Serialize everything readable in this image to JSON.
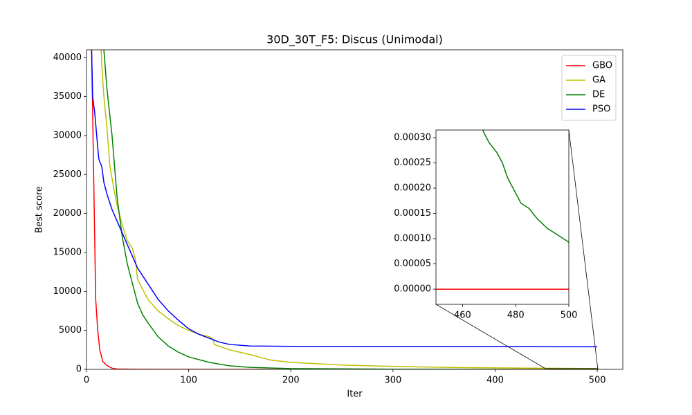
{
  "chart_data": [
    {
      "type": "line",
      "title": "30D_30T_F5: Discus (Unimodal)",
      "xlabel": "Iter",
      "ylabel": "Best score",
      "xlim": [
        0,
        525
      ],
      "ylim": [
        0,
        41000
      ],
      "xticks": [
        0,
        100,
        200,
        300,
        400,
        500
      ],
      "yticks": [
        0,
        5000,
        10000,
        15000,
        20000,
        25000,
        30000,
        35000,
        40000
      ],
      "legend": "upper right",
      "series": [
        {
          "name": "GBO",
          "color": "#ff0000",
          "x": [
            3,
            5,
            7,
            9,
            11,
            13,
            16,
            20,
            25,
            30,
            50,
            100,
            500
          ],
          "values": [
            60000,
            41000,
            25000,
            9000,
            5000,
            2500,
            1000,
            500,
            150,
            50,
            10,
            2,
            0
          ]
        },
        {
          "name": "GA",
          "color": "#bfbf00",
          "x": [
            13,
            15,
            17,
            20,
            23,
            27,
            30,
            35,
            40,
            45,
            48,
            50,
            52,
            60,
            70,
            80,
            90,
            100,
            110,
            120,
            124,
            125,
            140,
            160,
            180,
            200,
            250,
            300,
            350,
            400,
            450,
            500
          ],
          "values": [
            45000,
            39000,
            35000,
            31000,
            26000,
            23000,
            21000,
            18500,
            16500,
            15500,
            14000,
            11500,
            11000,
            9000,
            7500,
            6500,
            5600,
            5000,
            4500,
            4200,
            3900,
            3200,
            2500,
            1900,
            1200,
            900,
            550,
            380,
            260,
            190,
            140,
            100
          ]
        },
        {
          "name": "DE",
          "color": "#008000",
          "x": [
            16,
            17,
            20,
            25,
            30,
            35,
            40,
            45,
            50,
            55,
            60,
            70,
            80,
            90,
            100,
            120,
            140,
            160,
            200,
            300,
            400,
            450,
            500
          ],
          "values": [
            45000,
            41000,
            36000,
            30000,
            22000,
            17000,
            13500,
            11000,
            8500,
            7000,
            6000,
            4200,
            3000,
            2200,
            1600,
            900,
            450,
            250,
            100,
            20,
            5,
            0.0005,
            9.3e-05
          ]
        },
        {
          "name": "PSO",
          "color": "#0000ff",
          "x": [
            4,
            5,
            6,
            8,
            10,
            12,
            15,
            17,
            20,
            25,
            30,
            35,
            40,
            50,
            60,
            70,
            80,
            90,
            100,
            110,
            120,
            130,
            140,
            160,
            200,
            300,
            500
          ],
          "values": [
            50000,
            41000,
            35000,
            33000,
            30000,
            27000,
            26000,
            24000,
            22500,
            20500,
            19000,
            17500,
            16000,
            13000,
            11000,
            9000,
            7500,
            6300,
            5200,
            4500,
            4000,
            3500,
            3200,
            3000,
            2950,
            2920,
            2900
          ]
        }
      ]
    },
    {
      "type": "line",
      "xlim": [
        450,
        500
      ],
      "ylim": [
        -3e-05,
        0.000315
      ],
      "xticks": [
        460,
        480,
        500
      ],
      "yticks": [
        {
          "value": 0,
          "label": "0.00000"
        },
        {
          "value": 5e-05,
          "label": "0.00005"
        },
        {
          "value": 0.0001,
          "label": "0.00010"
        },
        {
          "value": 0.00015,
          "label": "0.00015"
        },
        {
          "value": 0.0002,
          "label": "0.00020"
        },
        {
          "value": 0.00025,
          "label": "0.00025"
        },
        {
          "value": 0.0003,
          "label": "0.00030"
        }
      ],
      "series": [
        {
          "color": "#ff0000",
          "x": [
            450,
            500
          ],
          "values": [
            0,
            0
          ]
        },
        {
          "color": "#008000",
          "x": [
            466,
            468,
            470,
            473,
            475,
            477,
            480,
            482,
            485,
            488,
            492,
            495,
            500
          ],
          "values": [
            0.00034,
            0.00031,
            0.00029,
            0.00027,
            0.00025,
            0.00022,
            0.00019,
            0.00017,
            0.00016,
            0.00014,
            0.00012,
            0.00011,
            9.3e-05
          ]
        }
      ]
    }
  ]
}
